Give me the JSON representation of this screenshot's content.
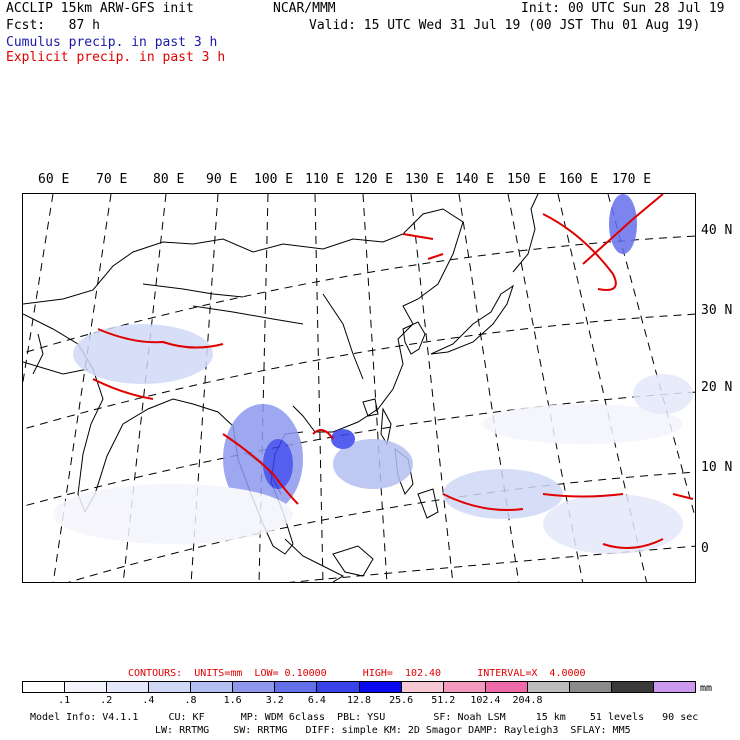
{
  "header": {
    "title_left": "ACCLIP 15km ARW-GFS init",
    "forecast": "Fcst:   87 h",
    "center": "NCAR/MMM",
    "init": "Init: 00 UTC Sun 28 Jul 19",
    "valid": "Valid: 15 UTC Wed 31 Jul 19 (00 JST Thu 01 Aug 19)",
    "legend_cumulus": "Cumulus precip. in past 3 h",
    "legend_explicit": "Explicit precip. in past 3 h"
  },
  "lon_labels": [
    "60 E",
    "70 E",
    "80 E",
    "90 E",
    "100 E",
    "110 E",
    "120 E",
    "130 E",
    "140 E",
    "150 E",
    "160 E",
    "170 E"
  ],
  "lat_labels": [
    "40 N",
    "30 N",
    "20 N",
    "10 N",
    "0"
  ],
  "contours": {
    "line": "CONTOURS:  UNITS=mm  LOW= 0.10000      HIGH=  102.40      INTERVAL=X  4.0000"
  },
  "colorbar": {
    "colors": [
      "#ffffff",
      "#f4f4fc",
      "#e4e8fa",
      "#d0d8f6",
      "#b4bff2",
      "#8e99ee",
      "#6470ea",
      "#3844ea",
      "#0a0af0",
      "#f6c8d4",
      "#f29abe",
      "#ee6aa8",
      "#bdbdbd",
      "#8a8a8a",
      "#3a3a3a",
      "#cc99ee"
    ],
    "ticks": [
      ".1",
      ".2",
      ".4",
      ".8",
      "1.6",
      "3.2",
      "6.4",
      "12.8",
      "25.6",
      "51.2",
      "102.4",
      "204.8"
    ],
    "unit": "mm"
  },
  "model_info": {
    "line1": "Model Info: V4.1.1     CU: KF      MP: WDM 6class  PBL: YSU        SF: Noah LSM     15 km    51 levels   90 sec",
    "line2": "LW: RRTMG    SW: RRTMG   DIFF: simple KM: 2D Smagor DAMP: Rayleigh3  SFLAY: MM5"
  }
}
